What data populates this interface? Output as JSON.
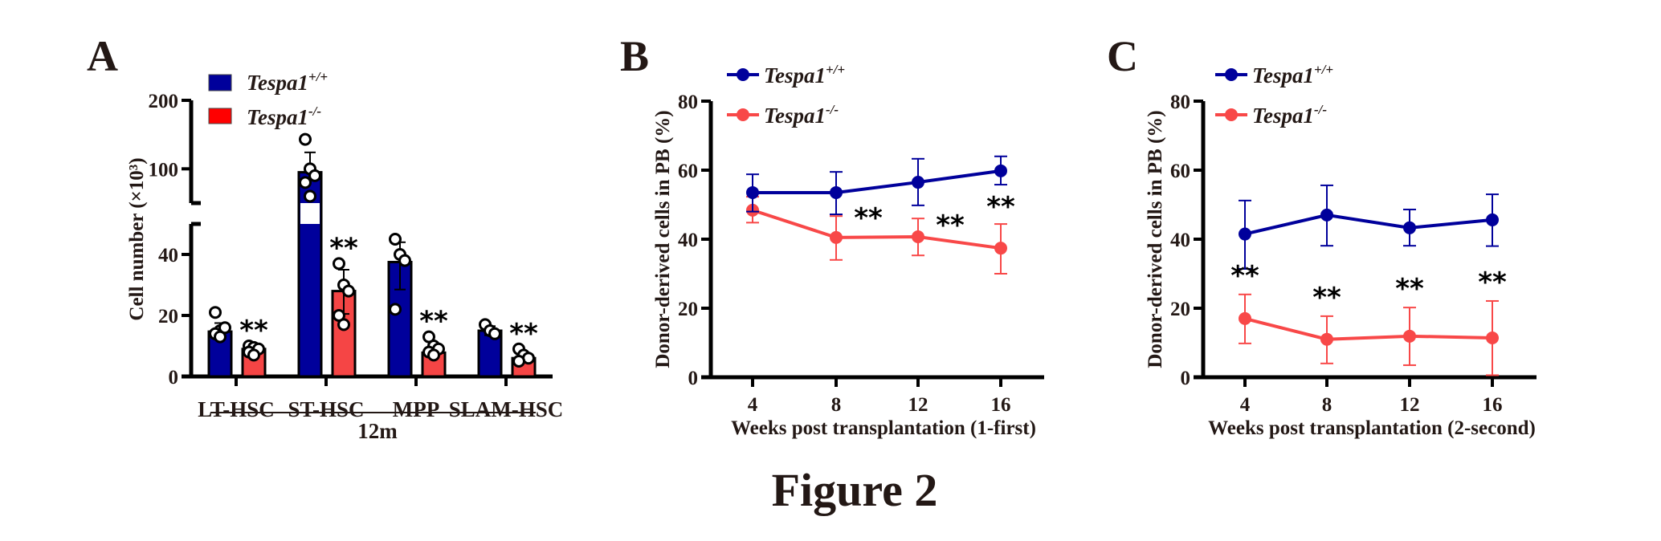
{
  "figure_title": "Figure 2",
  "colors": {
    "wt": "#00009b",
    "ko_bar": "#f54545",
    "ko_legend": "#ff0000",
    "ko_line": "#f84848",
    "axis": "#000000",
    "text": "#231815"
  },
  "legend": {
    "wt": {
      "base": "Tespa1",
      "sup": "+/+"
    },
    "ko": {
      "base": "Tespa1",
      "sup": "-/-"
    }
  },
  "chart_data": [
    {
      "panel": "A",
      "type": "bar",
      "title": "",
      "ylabel": "Cell number (×10³)",
      "xlabel": "12m",
      "y_axis_break": {
        "lower": [
          0,
          50
        ],
        "upper": [
          50,
          200
        ]
      },
      "yticks_lower": [
        0,
        20,
        40
      ],
      "yticks_upper": [
        100,
        200
      ],
      "categories": [
        "LT-HSC",
        "ST-HSC",
        "MPP",
        "SLAM-HSC"
      ],
      "legend_position": "top-left",
      "series": [
        {
          "name": "Tespa1+/+",
          "values": [
            14.7,
            95,
            37.5,
            15
          ],
          "error_upper": [
            17.5,
            124,
            44,
            16.5
          ],
          "error_lower": [
            12.5,
            null,
            28.5,
            13.5
          ],
          "points": [
            [
              21,
              15,
              16,
              14,
              13
            ],
            [
              143,
              100,
              90,
              80,
              60
            ],
            [
              45,
              40,
              38,
              22
            ],
            [
              17,
              15,
              14
            ]
          ]
        },
        {
          "name": "Tespa1-/-",
          "values": [
            9,
            28,
            7.8,
            6
          ],
          "error_upper": [
            10,
            35,
            9.5,
            7
          ],
          "error_lower": [
            8,
            20.5,
            6.5,
            5
          ],
          "points": [
            [
              10,
              9.5,
              9,
              8,
              7
            ],
            [
              37,
              30,
              28,
              20,
              17
            ],
            [
              13,
              10,
              9,
              8,
              7
            ],
            [
              9,
              7,
              6,
              5
            ]
          ]
        }
      ],
      "annotations": [
        "**",
        "**",
        "**",
        "**"
      ]
    },
    {
      "panel": "B",
      "type": "line",
      "title": "",
      "xlabel": "Weeks post transplantation (1-first)",
      "ylabel": "Donor-derived cells in PB (%)",
      "x": [
        4,
        8,
        12,
        16
      ],
      "ylim": [
        0,
        80
      ],
      "yticks": [
        0,
        20,
        40,
        60,
        80
      ],
      "legend_position": "top-left",
      "series": [
        {
          "name": "Tespa1+/+",
          "values": [
            53.5,
            53.5,
            56.5,
            59.8
          ],
          "err_high": [
            58.8,
            59.5,
            63.3,
            64
          ],
          "err_low": [
            48,
            47.2,
            49.8,
            55.8
          ]
        },
        {
          "name": "Tespa1-/-",
          "values": [
            48.4,
            40.5,
            40.7,
            37.4
          ],
          "err_high": [
            52.3,
            46.7,
            46,
            44.4
          ],
          "err_low": [
            44.8,
            34,
            35.3,
            30
          ]
        }
      ],
      "annotations": [
        {
          "x": 8,
          "text": "**"
        },
        {
          "x": 12,
          "text": "**"
        },
        {
          "x": 16,
          "text": "**"
        }
      ]
    },
    {
      "panel": "C",
      "type": "line",
      "title": "",
      "xlabel": "Weeks post transplantation (2-second)",
      "ylabel": "Donor-derived cells in PB (%)",
      "x": [
        4,
        8,
        12,
        16
      ],
      "ylim": [
        0,
        80
      ],
      "yticks": [
        0,
        20,
        40,
        60,
        80
      ],
      "legend_position": "top-left",
      "series": [
        {
          "name": "Tespa1+/+",
          "values": [
            41.5,
            47,
            43.3,
            45.6
          ],
          "err_high": [
            51.2,
            55.6,
            48.6,
            53
          ],
          "err_low": [
            31.4,
            38.1,
            38.1,
            38
          ]
        },
        {
          "name": "Tespa1-/-",
          "values": [
            17,
            11,
            11.9,
            11.4
          ],
          "err_high": [
            24,
            17.7,
            20.2,
            22.1
          ],
          "err_low": [
            9.8,
            4,
            3.5,
            0.6
          ]
        }
      ],
      "annotations": [
        {
          "x": 4,
          "text": "**"
        },
        {
          "x": 8,
          "text": "**"
        },
        {
          "x": 12,
          "text": "**"
        },
        {
          "x": 16,
          "text": "**"
        }
      ]
    }
  ]
}
